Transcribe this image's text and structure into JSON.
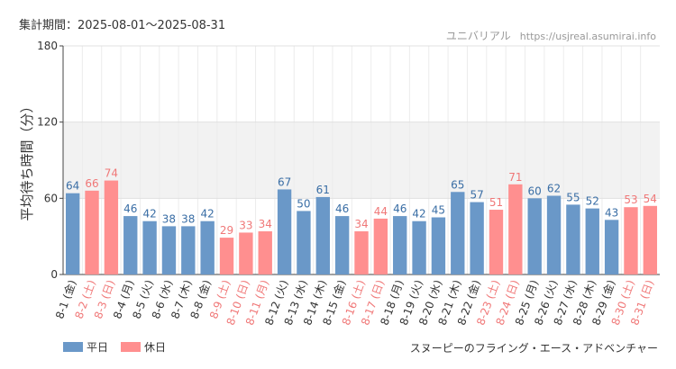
{
  "header": {
    "period": "集計期間：2025-08-01〜2025-08-31",
    "site_name": "ユニバリアル",
    "site_url": "https://usjreal.asumirai.info"
  },
  "attraction": "スヌーピーのフライング・エース・アドベンチャー",
  "legend": {
    "weekday_label": "平日",
    "holiday_label": "休日"
  },
  "colors": {
    "weekday": "#6a98c8",
    "holiday": "#ff8f8f",
    "holiday_text": "#f07878",
    "band": "#f2f2f2",
    "grid": "#e0e0e0"
  },
  "chart_data": {
    "type": "bar",
    "ylabel": "平均待ち時間（分）",
    "ylim": [
      0,
      180
    ],
    "yticks": [
      0,
      60,
      120,
      180
    ],
    "shaded_band": [
      60,
      120
    ],
    "categories": [
      "8-1 (金)",
      "8-2 (土)",
      "8-3 (日)",
      "8-4 (月)",
      "8-5 (火)",
      "8-6 (水)",
      "8-7 (木)",
      "8-8 (金)",
      "8-9 (土)",
      "8-10 (日)",
      "8-11 (月)",
      "8-12 (火)",
      "8-13 (水)",
      "8-14 (木)",
      "8-15 (金)",
      "8-16 (土)",
      "8-17 (日)",
      "8-18 (月)",
      "8-19 (火)",
      "8-20 (水)",
      "8-21 (木)",
      "8-22 (金)",
      "8-23 (土)",
      "8-24 (日)",
      "8-25 (月)",
      "8-26 (火)",
      "8-27 (水)",
      "8-28 (木)",
      "8-29 (金)",
      "8-30 (土)",
      "8-31 (日)"
    ],
    "values": [
      64,
      66,
      74,
      46,
      42,
      38,
      38,
      42,
      29,
      33,
      34,
      67,
      50,
      61,
      46,
      34,
      44,
      46,
      42,
      45,
      65,
      57,
      51,
      71,
      60,
      62,
      55,
      52,
      43,
      53,
      54
    ],
    "day_type": [
      "weekday",
      "holiday",
      "holiday",
      "weekday",
      "weekday",
      "weekday",
      "weekday",
      "weekday",
      "holiday",
      "holiday",
      "holiday",
      "weekday",
      "weekday",
      "weekday",
      "weekday",
      "holiday",
      "holiday",
      "weekday",
      "weekday",
      "weekday",
      "weekday",
      "weekday",
      "holiday",
      "holiday",
      "weekday",
      "weekday",
      "weekday",
      "weekday",
      "weekday",
      "holiday",
      "holiday"
    ]
  }
}
